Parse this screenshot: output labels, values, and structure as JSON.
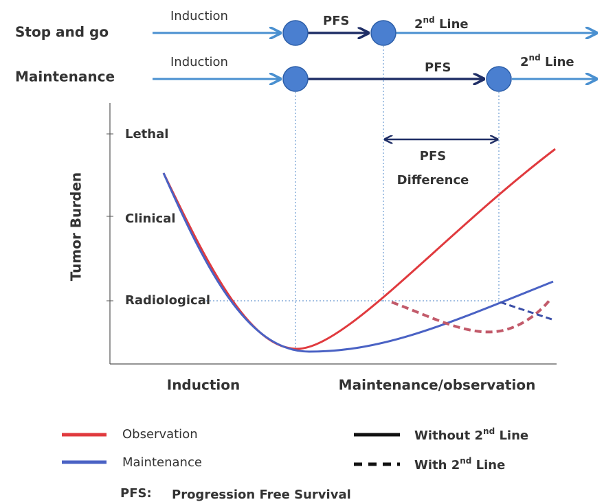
{
  "timelines": [
    {
      "label": "Stop and go",
      "induction": "Induction",
      "pfs": "PFS",
      "second_line": {
        "number": "2",
        "suffix": "nd",
        "word": " Line"
      }
    },
    {
      "label": "Maintenance",
      "induction": "Induction",
      "pfs": "PFS",
      "second_line": {
        "number": "2",
        "suffix": "nd",
        "word": " Line"
      }
    }
  ],
  "y_axis": {
    "title": "Tumor Burden",
    "levels": [
      "Lethal",
      "Clinical",
      "Radiological"
    ]
  },
  "x_axis": {
    "phases": [
      "Induction",
      "Maintenance/observation"
    ]
  },
  "annotation": {
    "line1": "PFS",
    "line2": "Difference"
  },
  "legend": {
    "colors": [
      "Observation",
      "Maintenance"
    ],
    "styles": [
      {
        "text": "Without ",
        "number": "2",
        "suffix": "nd",
        "word": " Line"
      },
      {
        "text": "With ",
        "number": "2",
        "suffix": "nd",
        "word": " Line"
      }
    ]
  },
  "footnote": {
    "abbr": "PFS:",
    "meaning": "Progression Free Survival"
  }
}
